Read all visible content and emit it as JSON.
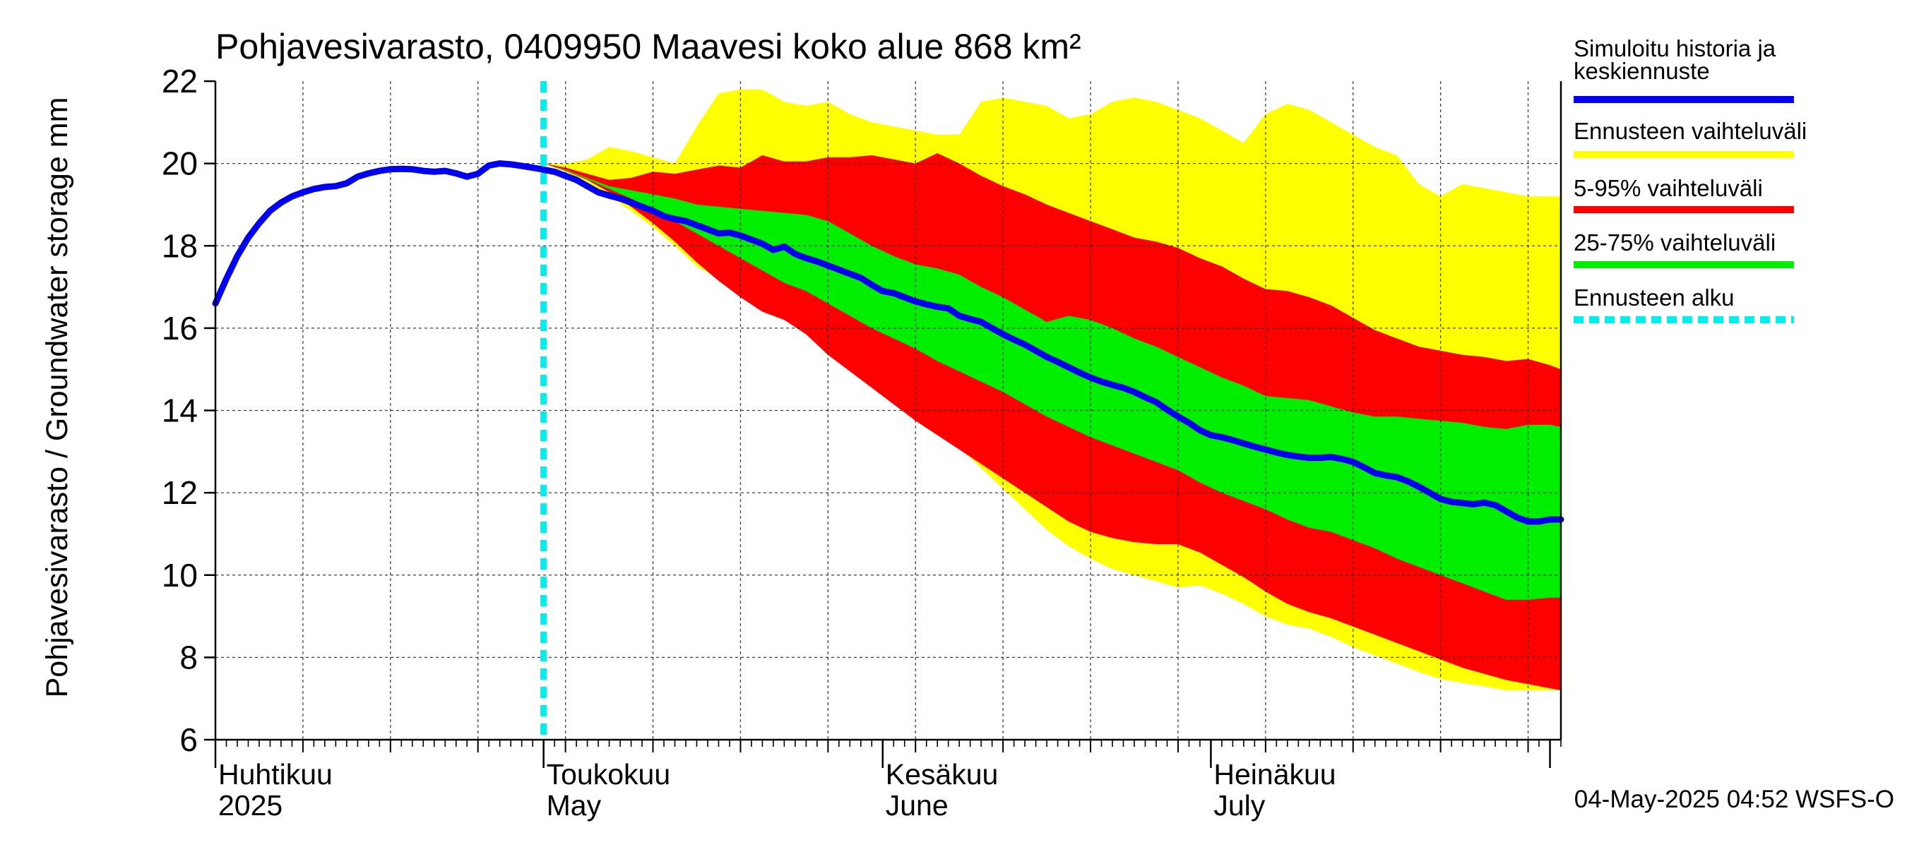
{
  "chart_data": {
    "type": "area",
    "title": "Pohjavesivarasto, 0409950 Maavesi koko alue 868 km²",
    "ylabel": "Pohjavesivarasto / Groundwater storage   mm",
    "ylim": [
      6,
      22
    ],
    "yticks": [
      6,
      8,
      10,
      12,
      14,
      16,
      18,
      20,
      22
    ],
    "x_axis": {
      "unit": "day",
      "start": "2025-04-01",
      "range_days": [
        0,
        123
      ],
      "month_starts": [
        0,
        30,
        61,
        91,
        122
      ],
      "month_labels": [
        {
          "day": 0,
          "fi": "Huhtikuu",
          "en": "2025"
        },
        {
          "day": 30,
          "fi": "Toukokuu",
          "en": "May"
        },
        {
          "day": 61,
          "fi": "Kesäkuu",
          "en": "June"
        },
        {
          "day": 91,
          "fi": "Heinäkuu",
          "en": "July"
        }
      ]
    },
    "forecast_start_day": 30,
    "legend": {
      "placement": "right",
      "entries": [
        {
          "label": "Simuloitu historia ja keskiennuste",
          "color": "#0000ee",
          "style": "solid"
        },
        {
          "label": "Ennusteen vaihteluväli",
          "color": "#ffff00",
          "style": "solid"
        },
        {
          "label": "5-95% vaihteluväli",
          "color": "#ff0000",
          "style": "solid"
        },
        {
          "label": "25-75% vaihteluväli",
          "color": "#00ee00",
          "style": "solid"
        },
        {
          "label": "Ennusteen alku",
          "color": "#00eeee",
          "style": "dashed"
        }
      ]
    },
    "series": [
      {
        "name": "Simuloitu historia ja keskiennuste",
        "color": "#0000ee",
        "x": [
          0,
          1,
          2,
          3,
          4,
          5,
          6,
          7,
          8,
          9,
          10,
          11,
          12,
          13,
          14,
          15,
          16,
          17,
          18,
          19,
          20,
          21,
          22,
          23,
          24,
          25,
          26,
          27,
          28,
          29,
          30,
          31,
          32,
          33,
          34,
          35,
          36,
          37,
          38,
          39,
          40,
          41,
          42,
          43,
          44,
          45,
          46,
          47,
          48,
          49,
          50,
          51,
          52,
          53,
          54,
          55,
          56,
          57,
          58,
          59,
          60,
          61,
          62,
          63,
          64,
          65,
          66,
          67,
          68,
          69,
          70,
          71,
          72,
          73,
          74,
          75,
          76,
          77,
          78,
          79,
          80,
          81,
          82,
          83,
          84,
          85,
          86,
          87,
          88,
          89,
          90,
          91,
          92,
          93,
          94,
          95,
          96,
          97,
          98,
          99,
          100,
          101,
          102,
          103,
          104,
          105,
          106,
          107,
          108,
          109,
          110,
          111,
          112,
          113,
          114,
          115,
          116,
          117,
          118,
          119,
          120,
          121,
          122,
          123
        ],
        "y": [
          16.6,
          17.2,
          17.75,
          18.2,
          18.55,
          18.85,
          19.05,
          19.2,
          19.3,
          19.38,
          19.43,
          19.45,
          19.52,
          19.68,
          19.76,
          19.82,
          19.86,
          19.87,
          19.86,
          19.82,
          19.8,
          19.82,
          19.76,
          19.68,
          19.75,
          19.95,
          20.0,
          19.98,
          19.94,
          19.9,
          19.85,
          19.8,
          19.7,
          19.6,
          19.45,
          19.3,
          19.22,
          19.15,
          19.05,
          18.95,
          18.85,
          18.72,
          18.65,
          18.6,
          18.5,
          18.4,
          18.3,
          18.32,
          18.25,
          18.15,
          18.05,
          17.9,
          17.98,
          17.8,
          17.7,
          17.62,
          17.52,
          17.42,
          17.32,
          17.22,
          17.05,
          16.9,
          16.85,
          16.75,
          16.65,
          16.58,
          16.52,
          16.48,
          16.3,
          16.22,
          16.15,
          16.0,
          15.85,
          15.72,
          15.6,
          15.45,
          15.3,
          15.18,
          15.05,
          14.92,
          14.8,
          14.7,
          14.62,
          14.55,
          14.45,
          14.32,
          14.2,
          14.02,
          13.85,
          13.7,
          13.52,
          13.4,
          13.35,
          13.28,
          13.2,
          13.12,
          13.05,
          12.98,
          12.92,
          12.88,
          12.85,
          12.85,
          12.87,
          12.82,
          12.75,
          12.62,
          12.48,
          12.42,
          12.38,
          12.28,
          12.15,
          12.0,
          11.85,
          11.78,
          11.75,
          11.72,
          11.76,
          11.7,
          11.55,
          11.4,
          11.3,
          11.3,
          11.35,
          11.35
        ]
      },
      {
        "name": "Ennusteen vaihteluväli",
        "color": "#ffff00",
        "x": [
          30,
          32,
          34,
          36,
          38,
          40,
          42,
          44,
          46,
          48,
          50,
          52,
          54,
          56,
          58,
          60,
          62,
          64,
          66,
          68,
          70,
          72,
          74,
          76,
          78,
          80,
          82,
          84,
          86,
          88,
          90,
          92,
          94,
          96,
          98,
          100,
          102,
          104,
          106,
          108,
          110,
          112,
          114,
          116,
          118,
          120,
          122,
          123
        ],
        "upper": [
          20.0,
          19.98,
          20.1,
          20.4,
          20.3,
          20.15,
          20.0,
          20.9,
          21.7,
          21.8,
          21.8,
          21.5,
          21.4,
          21.5,
          21.2,
          21.0,
          20.9,
          20.8,
          20.7,
          20.7,
          21.5,
          21.6,
          21.5,
          21.4,
          21.1,
          21.2,
          21.5,
          21.6,
          21.5,
          21.3,
          21.1,
          20.8,
          20.5,
          21.2,
          21.45,
          21.3,
          21.0,
          20.7,
          20.4,
          20.2,
          19.5,
          19.2,
          19.5,
          19.4,
          19.3,
          19.2,
          19.2,
          19.2
        ],
        "lower": [
          20.0,
          19.8,
          19.55,
          19.2,
          18.85,
          18.45,
          18.0,
          17.5,
          17.2,
          16.85,
          16.5,
          16.25,
          16.1,
          15.7,
          15.3,
          14.8,
          14.4,
          14.0,
          13.6,
          13.1,
          12.6,
          12.1,
          11.6,
          11.1,
          10.7,
          10.4,
          10.15,
          10.0,
          9.85,
          9.7,
          9.75,
          9.55,
          9.3,
          9.0,
          8.8,
          8.7,
          8.5,
          8.25,
          8.05,
          7.85,
          7.65,
          7.48,
          7.38,
          7.3,
          7.2,
          7.2,
          7.2,
          7.2
        ]
      },
      {
        "name": "5-95% vaihteluväli",
        "color": "#ff0000",
        "x": [
          30,
          32,
          34,
          36,
          38,
          40,
          42,
          44,
          46,
          48,
          50,
          52,
          54,
          56,
          58,
          60,
          62,
          64,
          66,
          68,
          70,
          72,
          74,
          76,
          78,
          80,
          82,
          84,
          86,
          88,
          90,
          92,
          94,
          96,
          98,
          100,
          102,
          104,
          106,
          108,
          110,
          112,
          114,
          116,
          118,
          120,
          122,
          123
        ],
        "upper": [
          20.0,
          19.9,
          19.75,
          19.6,
          19.65,
          19.8,
          19.75,
          19.85,
          19.95,
          19.9,
          20.2,
          20.05,
          20.05,
          20.15,
          20.15,
          20.2,
          20.1,
          20.0,
          20.25,
          20.0,
          19.7,
          19.45,
          19.25,
          19.0,
          18.8,
          18.6,
          18.4,
          18.2,
          18.1,
          17.95,
          17.7,
          17.5,
          17.2,
          16.95,
          16.9,
          16.75,
          16.55,
          16.25,
          15.95,
          15.75,
          15.55,
          15.45,
          15.35,
          15.3,
          15.2,
          15.25,
          15.1,
          15.0
        ],
        "lower": [
          20.0,
          19.82,
          19.6,
          19.3,
          18.95,
          18.55,
          18.1,
          17.6,
          17.15,
          16.75,
          16.4,
          16.2,
          15.85,
          15.35,
          14.95,
          14.55,
          14.15,
          13.75,
          13.4,
          13.05,
          12.7,
          12.35,
          12.0,
          11.65,
          11.3,
          11.05,
          10.9,
          10.8,
          10.75,
          10.75,
          10.55,
          10.25,
          9.95,
          9.6,
          9.3,
          9.1,
          8.95,
          8.75,
          8.55,
          8.35,
          8.15,
          7.95,
          7.75,
          7.6,
          7.45,
          7.35,
          7.25,
          7.2
        ]
      },
      {
        "name": "25-75% vaihteluväli",
        "color": "#00ee00",
        "x": [
          30,
          32,
          34,
          36,
          38,
          40,
          42,
          44,
          46,
          48,
          50,
          52,
          54,
          56,
          58,
          60,
          62,
          64,
          66,
          68,
          70,
          72,
          74,
          76,
          78,
          80,
          82,
          84,
          86,
          88,
          90,
          92,
          94,
          96,
          98,
          100,
          102,
          104,
          106,
          108,
          110,
          112,
          114,
          116,
          118,
          120,
          122,
          123
        ],
        "upper": [
          20.0,
          19.85,
          19.65,
          19.45,
          19.35,
          19.25,
          19.15,
          19.0,
          18.95,
          18.9,
          18.85,
          18.8,
          18.75,
          18.6,
          18.3,
          18.0,
          17.75,
          17.55,
          17.45,
          17.3,
          17.0,
          16.75,
          16.45,
          16.15,
          16.3,
          16.2,
          16.0,
          15.75,
          15.55,
          15.3,
          15.05,
          14.8,
          14.6,
          14.35,
          14.3,
          14.25,
          14.1,
          13.95,
          13.85,
          13.85,
          13.8,
          13.75,
          13.7,
          13.6,
          13.55,
          13.65,
          13.65,
          13.6
        ],
        "lower": [
          20.0,
          19.83,
          19.62,
          19.38,
          19.15,
          18.9,
          18.6,
          18.3,
          18.0,
          17.7,
          17.4,
          17.1,
          16.9,
          16.6,
          16.3,
          16.0,
          15.75,
          15.5,
          15.2,
          14.95,
          14.7,
          14.45,
          14.15,
          13.85,
          13.6,
          13.35,
          13.15,
          12.95,
          12.75,
          12.55,
          12.25,
          12.0,
          11.8,
          11.6,
          11.35,
          11.15,
          11.05,
          10.85,
          10.65,
          10.4,
          10.2,
          10.0,
          9.8,
          9.6,
          9.4,
          9.4,
          9.45,
          9.45
        ]
      }
    ]
  },
  "footer": {
    "timestamp": "04-May-2025 04:52 WSFS-O"
  }
}
